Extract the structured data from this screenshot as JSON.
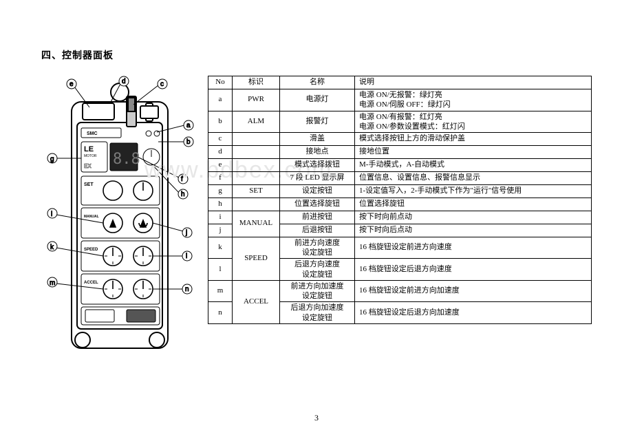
{
  "section_title": "四、控制器面板",
  "watermark": "www.bdbex.com",
  "page_number": "3",
  "diagram": {
    "brand": "SMC",
    "model1": "LE",
    "model2": "MOTOR",
    "model3": "EX",
    "display_digits": "8.8",
    "labels": {
      "set": "SET",
      "manual": "MANUAL",
      "speed": "SPEED",
      "accel": "ACCEL"
    },
    "callouts": [
      "a",
      "b",
      "c",
      "d",
      "e",
      "f",
      "g",
      "h",
      "i",
      "j",
      "k",
      "l",
      "m",
      "n"
    ],
    "colors": {
      "stroke": "#000000",
      "fill": "#ffffff",
      "gray": "#7a7a7a",
      "led_bg": "#222222"
    }
  },
  "table": {
    "headers": {
      "no": "No",
      "mark": "标识",
      "name": "名称",
      "desc": "说明"
    },
    "rows": [
      {
        "no": "a",
        "mark": "PWR",
        "name": "电源灯",
        "desc": "电源 ON/无报警：绿灯亮\n电源 ON/伺服 OFF：绿灯闪"
      },
      {
        "no": "b",
        "mark": "ALM",
        "name": "报警灯",
        "desc": "电源 ON/有报警：红灯亮\n电源 ON/参数设置模式：红灯闪"
      },
      {
        "no": "c",
        "mark": "",
        "name": "滑盖",
        "desc": "模式选择按钮上方的滑动保护盖"
      },
      {
        "no": "d",
        "mark": "",
        "name": "接地点",
        "desc": "接地位置"
      },
      {
        "no": "e",
        "mark": "",
        "name": "模式选择拨钮",
        "desc": "M-手动模式，A-自动模式"
      },
      {
        "no": "f",
        "mark": "",
        "name": "7 段 LED 显示屏",
        "desc": "位置信息、设置信息、报警信息显示"
      },
      {
        "no": "g",
        "mark": "SET",
        "name": "设定按钮",
        "desc": "1-设定值写入，2-手动模式下作为\"运行\"信号使用"
      },
      {
        "no": "h",
        "mark": "",
        "name": "位置选择旋钮",
        "desc": "位置选择旋钮"
      },
      {
        "no": "i",
        "mark": "MANUAL",
        "name": "前进按钮",
        "desc": "按下时向前点动",
        "rowspan_mark": 2
      },
      {
        "no": "j",
        "mark": "",
        "name": "后退按钮",
        "desc": "按下时向后点动"
      },
      {
        "no": "k",
        "mark": "SPEED",
        "name": "前进方向速度\n设定旋钮",
        "desc": "16 档旋钮设定前进方向速度",
        "rowspan_mark": 2
      },
      {
        "no": "l",
        "mark": "",
        "name": "后退方向速度\n设定旋钮",
        "desc": "16 档旋钮设定后退方向速度"
      },
      {
        "no": "m",
        "mark": "ACCEL",
        "name": "前进方向加速度\n设定旋钮",
        "desc": "16 档旋钮设定前进方向加速度",
        "rowspan_mark": 2
      },
      {
        "no": "n",
        "mark": "",
        "name": "后退方向加速度\n设定旋钮",
        "desc": "16 档旋钮设定后退方向加速度"
      }
    ]
  }
}
